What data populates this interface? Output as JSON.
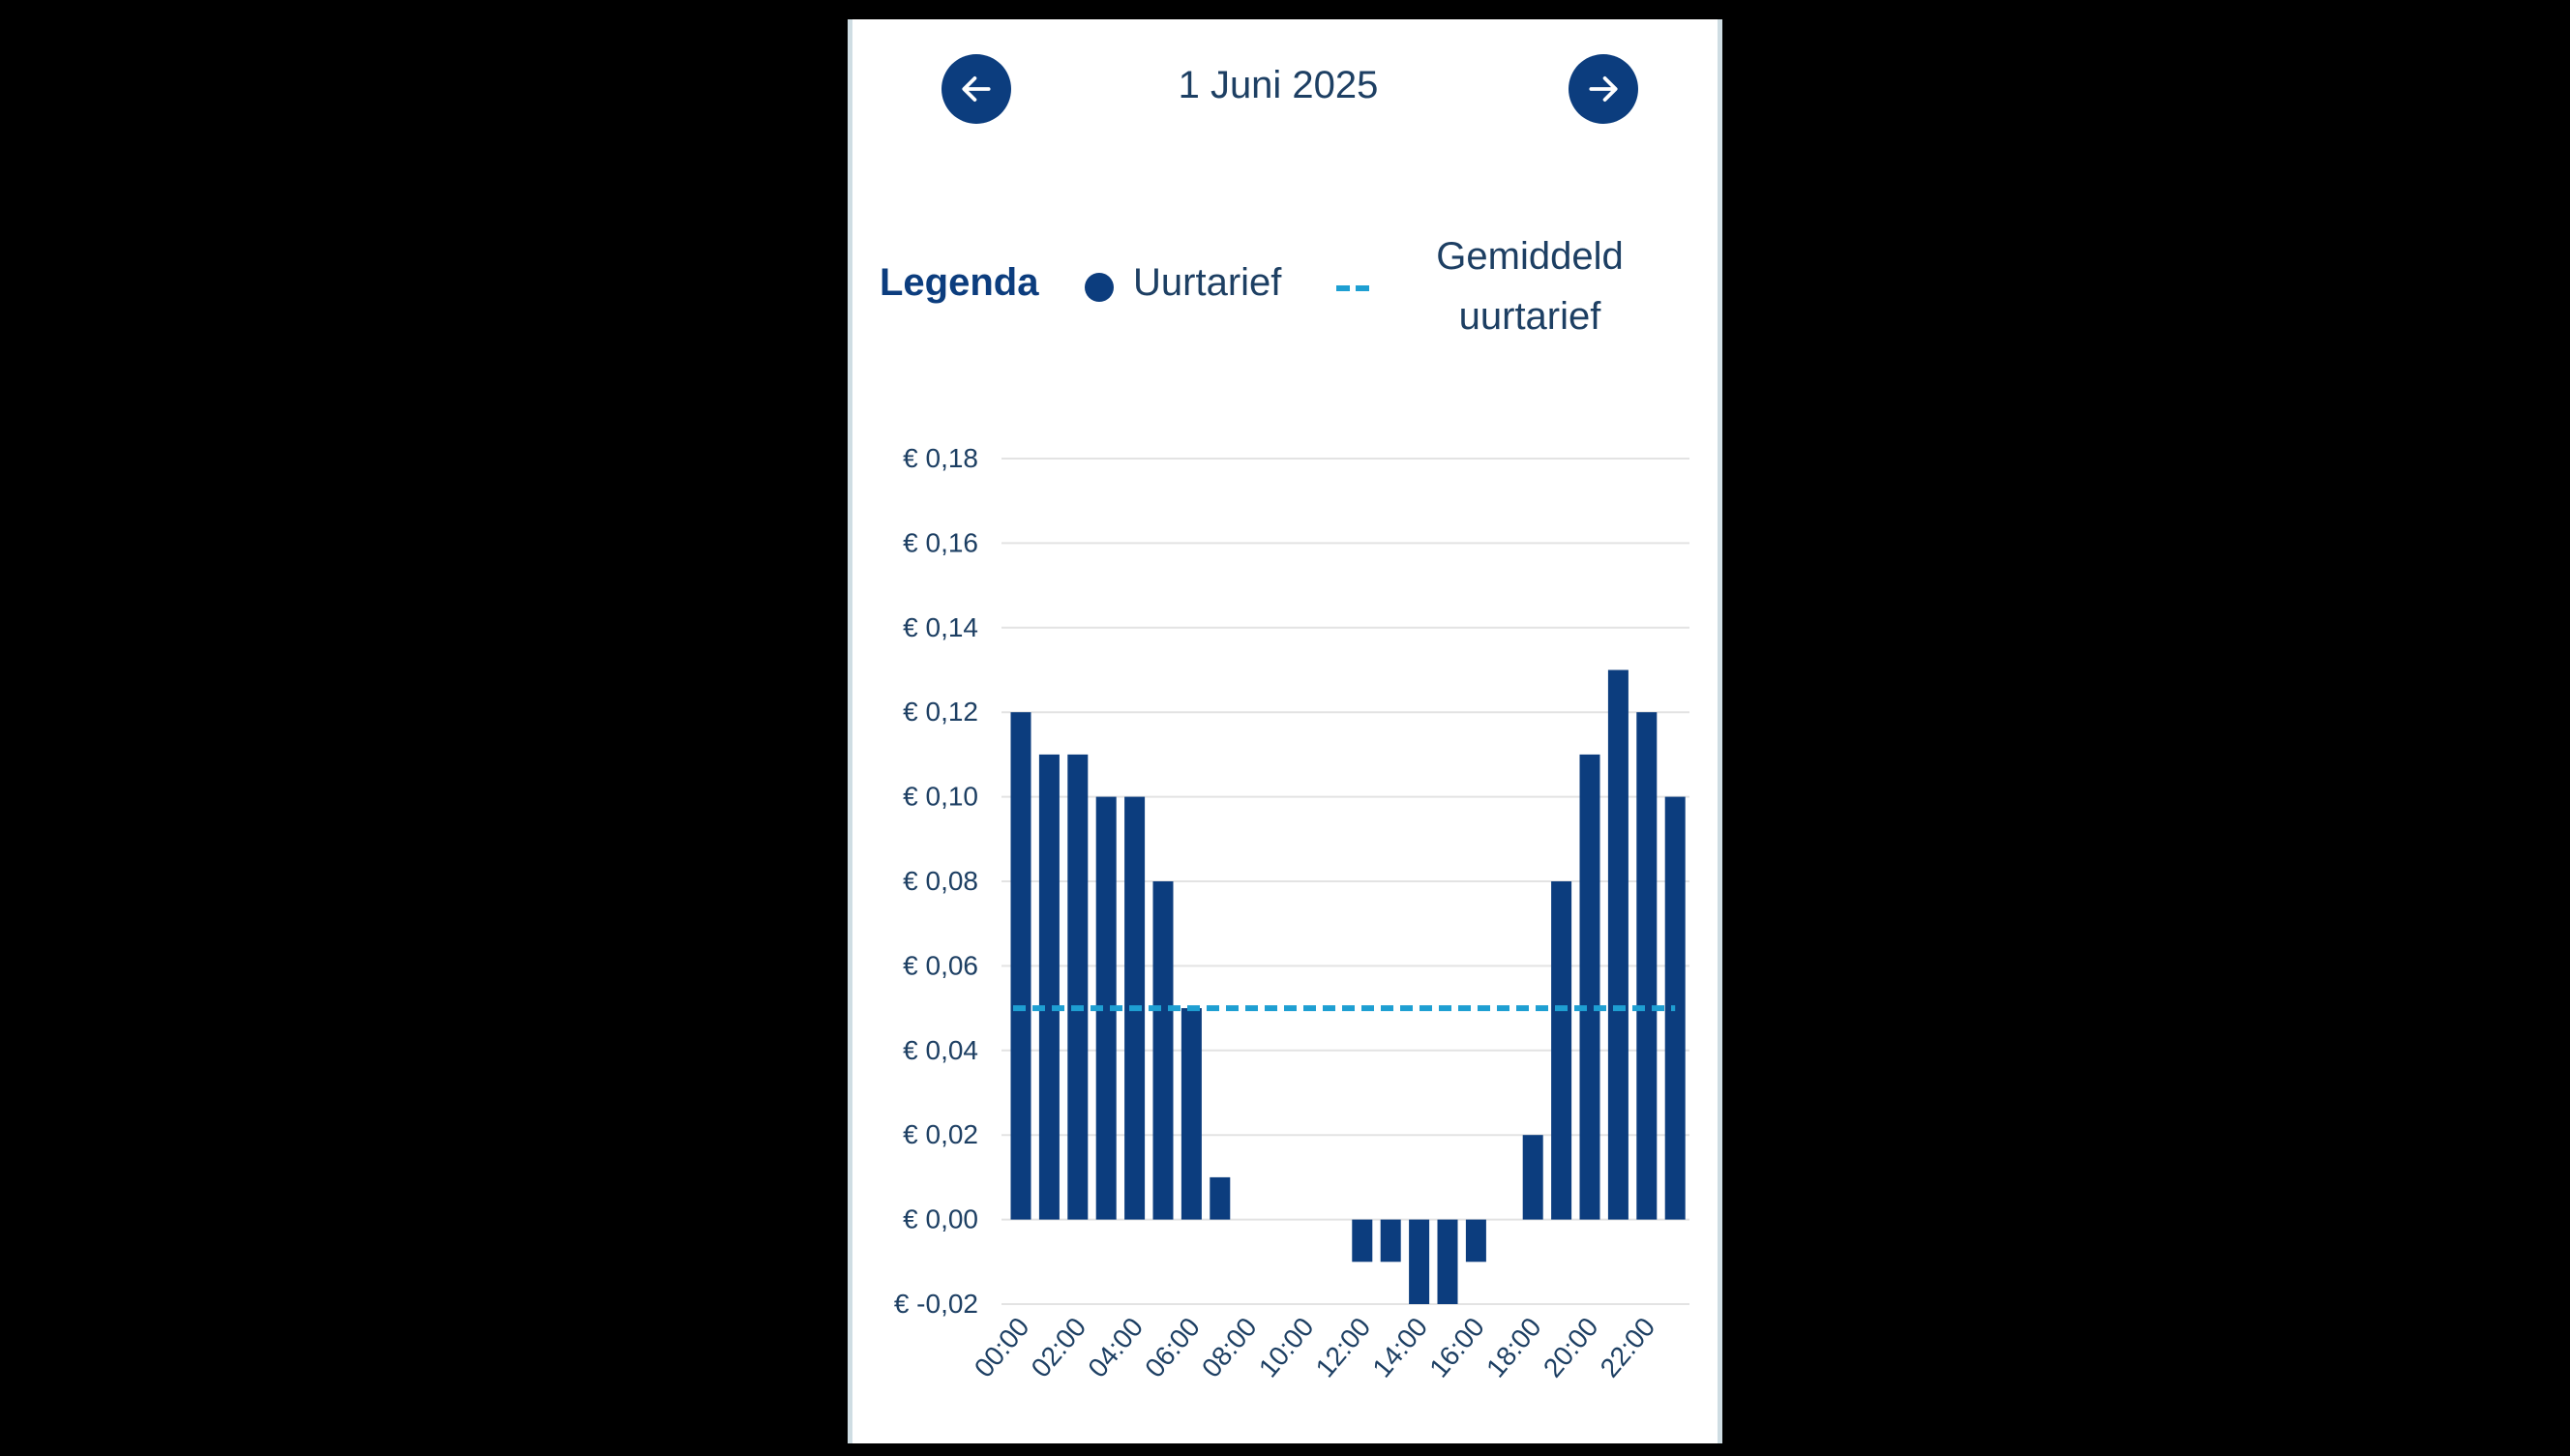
{
  "header": {
    "date": "1 Juni 2025",
    "prev_icon": "arrow-left-icon",
    "next_icon": "arrow-right-icon"
  },
  "legend": {
    "title": "Legenda",
    "hourly_label": "Uurtarief",
    "average_label_line1": "Gemiddeld",
    "average_label_line2": "uurtarief"
  },
  "colors": {
    "bar": "#0c3d7e",
    "average_line": "#1e9fd2",
    "grid": "#e3e3e3",
    "text": "#1d3f63"
  },
  "chart_data": {
    "type": "bar",
    "categories": [
      "00:00",
      "01:00",
      "02:00",
      "03:00",
      "04:00",
      "05:00",
      "06:00",
      "07:00",
      "08:00",
      "09:00",
      "10:00",
      "11:00",
      "12:00",
      "13:00",
      "14:00",
      "15:00",
      "16:00",
      "17:00",
      "18:00",
      "19:00",
      "20:00",
      "21:00",
      "22:00",
      "23:00"
    ],
    "x_tick_labels": [
      "00:00",
      "02:00",
      "04:00",
      "06:00",
      "08:00",
      "10:00",
      "12:00",
      "14:00",
      "16:00",
      "18:00",
      "20:00",
      "22:00"
    ],
    "series": [
      {
        "name": "Uurtarief",
        "values": [
          0.12,
          0.11,
          0.11,
          0.1,
          0.1,
          0.08,
          0.05,
          0.01,
          0,
          0,
          0,
          0,
          -0.01,
          -0.01,
          -0.02,
          -0.02,
          -0.01,
          0,
          0.02,
          0.08,
          0.11,
          0.13,
          0.12,
          0.1
        ]
      }
    ],
    "average": 0.05,
    "average_name": "Gemiddeld uurtarief",
    "y_ticks": [
      -0.02,
      0.0,
      0.02,
      0.04,
      0.06,
      0.08,
      0.1,
      0.12,
      0.14,
      0.16,
      0.18
    ],
    "y_tick_labels": [
      "€ -0,02",
      "€ 0,00",
      "€ 0,02",
      "€ 0,04",
      "€ 0,06",
      "€ 0,08",
      "€ 0,10",
      "€ 0,12",
      "€ 0,14",
      "€ 0,16",
      "€ 0,18"
    ],
    "ylim": [
      -0.02,
      0.18
    ],
    "grid": true,
    "legend_position": "top"
  }
}
